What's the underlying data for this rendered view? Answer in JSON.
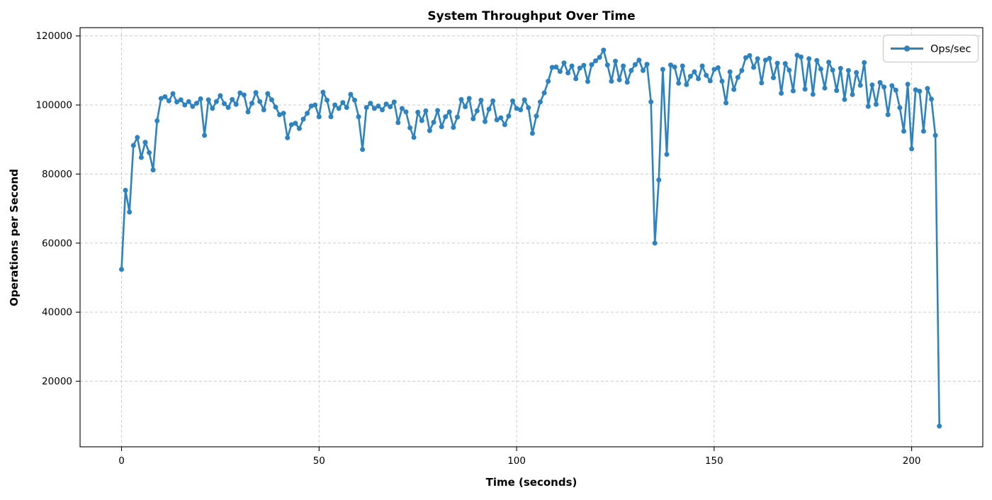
{
  "chart_data": {
    "type": "line",
    "title": "System Throughput Over Time",
    "xlabel": "Time (seconds)",
    "ylabel": "Operations per Second",
    "legend": [
      "Ops/sec"
    ],
    "legend_position": "upper right",
    "grid": true,
    "grid_style": "dashed",
    "xlim": [
      -10.5,
      218
    ],
    "ylim": [
      1000,
      122400
    ],
    "xticks": [
      0,
      50,
      100,
      150,
      200
    ],
    "yticks": [
      20000,
      40000,
      60000,
      80000,
      100000,
      120000
    ],
    "line_color": "#2d82c0",
    "grid_color": "#cccccc",
    "marker": "o",
    "x_start": 0,
    "x_step": 1,
    "series": [
      {
        "name": "Ops/sec",
        "values": [
          52400,
          75300,
          69000,
          88300,
          90600,
          84800,
          89200,
          86200,
          81200,
          95400,
          101900,
          102400,
          101200,
          103300,
          100900,
          101500,
          100000,
          101000,
          99600,
          100500,
          101800,
          91200,
          101500,
          99000,
          101000,
          102700,
          100400,
          99300,
          101600,
          100200,
          103500,
          102900,
          98000,
          100500,
          103600,
          101000,
          98600,
          103300,
          101500,
          99400,
          97200,
          97600,
          90500,
          94300,
          94700,
          93200,
          95900,
          97600,
          99700,
          100000,
          96600,
          103700,
          101400,
          96600,
          100000,
          99000,
          100700,
          99300,
          103100,
          101400,
          96600,
          87100,
          99300,
          100500,
          99000,
          99700,
          98600,
          100300,
          99500,
          100900,
          94900,
          99000,
          98000,
          93400,
          90600,
          97900,
          95500,
          98300,
          92600,
          95000,
          98400,
          93700,
          96600,
          98000,
          93500,
          96500,
          101600,
          99500,
          101900,
          96000,
          98300,
          101400,
          95200,
          98800,
          101200,
          95700,
          96300,
          94300,
          96800,
          101200,
          99000,
          98600,
          101500,
          99200,
          91800,
          96800,
          100900,
          103500,
          106900,
          110900,
          111000,
          109700,
          112200,
          109300,
          111300,
          107600,
          110700,
          111500,
          106800,
          111700,
          112800,
          113800,
          115900,
          111600,
          106900,
          112700,
          107300,
          111300,
          106600,
          110000,
          111700,
          113000,
          110000,
          111800,
          100900,
          60000,
          78300,
          110300,
          85700,
          111600,
          111000,
          106300,
          111300,
          105900,
          108300,
          109600,
          107600,
          111300,
          108600,
          107000,
          110300,
          110800,
          106900,
          100600,
          109600,
          104500,
          108000,
          110000,
          113700,
          114300,
          110900,
          113400,
          106400,
          113000,
          113500,
          107900,
          112100,
          103400,
          112000,
          110100,
          104100,
          114400,
          113900,
          104600,
          113400,
          103100,
          112900,
          110400,
          104900,
          112400,
          110100,
          104200,
          110600,
          101600,
          110000,
          103000,
          109400,
          105700,
          112300,
          99600,
          105800,
          100200,
          106500,
          105200,
          97200,
          105600,
          104300,
          99200,
          92400,
          106000,
          87300,
          104400,
          104000,
          92400,
          104800,
          101700,
          91200,
          7000
        ]
      }
    ]
  }
}
